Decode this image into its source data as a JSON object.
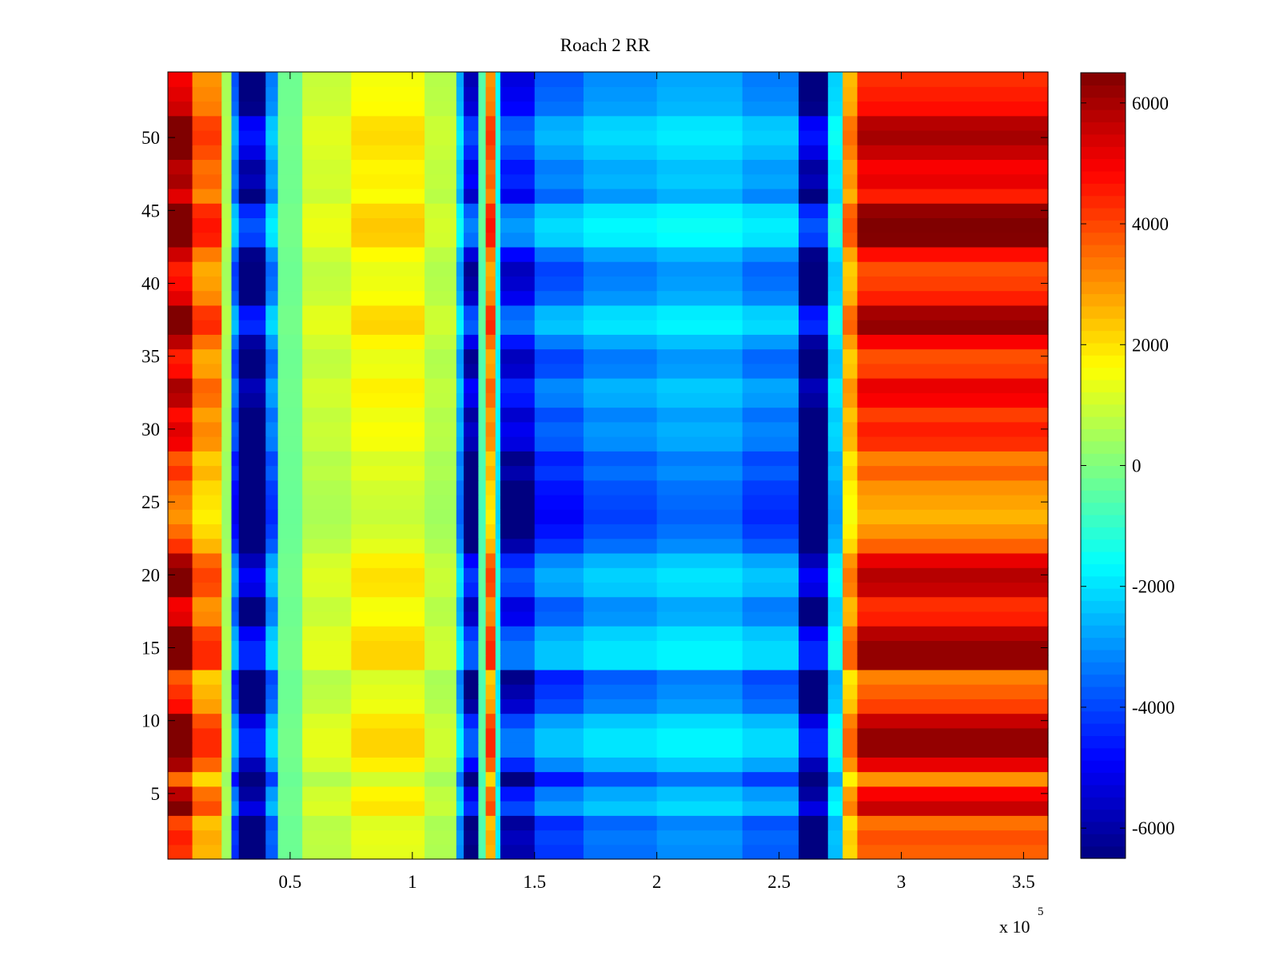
{
  "chart_data": {
    "type": "heatmap",
    "title": "Roach 2 RR",
    "xlabel": "",
    "ylabel": "",
    "x_multiplier_label": "x 10",
    "x_multiplier_exponent": "5",
    "xlim": [
      0,
      360000
    ],
    "ylim": [
      0.5,
      54.5
    ],
    "x_ticks": [
      50000,
      100000,
      150000,
      200000,
      250000,
      300000,
      350000
    ],
    "x_tick_labels": [
      "0.5",
      "1",
      "1.5",
      "2",
      "2.5",
      "3",
      "3.5"
    ],
    "y_ticks": [
      5,
      10,
      15,
      20,
      25,
      30,
      35,
      40,
      45,
      50
    ],
    "y_tick_labels": [
      "5",
      "10",
      "15",
      "20",
      "25",
      "30",
      "35",
      "40",
      "45",
      "50"
    ],
    "rows": 54,
    "colormap": "jet",
    "clim": [
      -6500,
      6500
    ],
    "colorbar": {
      "ticks": [
        -6000,
        -4000,
        -2000,
        0,
        2000,
        4000,
        6000
      ],
      "tick_labels": [
        "-6000",
        "-4000",
        "-2000",
        "0",
        "2000",
        "4000",
        "6000"
      ]
    },
    "column_bands": [
      {
        "x_start": 0,
        "x_end": 10000,
        "value": 5000
      },
      {
        "x_start": 10000,
        "x_end": 22000,
        "value": 3000
      },
      {
        "x_start": 22000,
        "x_end": 26000,
        "value": 500
      },
      {
        "x_start": 26000,
        "x_end": 29000,
        "value": -3500
      },
      {
        "x_start": 29000,
        "x_end": 40000,
        "value": -6300
      },
      {
        "x_start": 40000,
        "x_end": 45000,
        "value": -3000
      },
      {
        "x_start": 45000,
        "x_end": 55000,
        "value": -200
      },
      {
        "x_start": 55000,
        "x_end": 75000,
        "value": 900
      },
      {
        "x_start": 75000,
        "x_end": 105000,
        "value": 1500
      },
      {
        "x_start": 105000,
        "x_end": 118000,
        "value": 700
      },
      {
        "x_start": 118000,
        "x_end": 121000,
        "value": -2500
      },
      {
        "x_start": 121000,
        "x_end": 127000,
        "value": -5300
      },
      {
        "x_start": 127000,
        "x_end": 130000,
        "value": -500
      },
      {
        "x_start": 130000,
        "x_end": 134000,
        "value": 3000
      },
      {
        "x_start": 134000,
        "x_end": 136000,
        "value": -1500
      },
      {
        "x_start": 136000,
        "x_end": 150000,
        "value": -4800
      },
      {
        "x_start": 150000,
        "x_end": 170000,
        "value": -3400
      },
      {
        "x_start": 170000,
        "x_end": 200000,
        "value": -2800
      },
      {
        "x_start": 200000,
        "x_end": 235000,
        "value": -2500
      },
      {
        "x_start": 235000,
        "x_end": 258000,
        "value": -3000
      },
      {
        "x_start": 258000,
        "x_end": 270000,
        "value": -6300
      },
      {
        "x_start": 270000,
        "x_end": 276000,
        "value": -2000
      },
      {
        "x_start": 276000,
        "x_end": 282000,
        "value": 2500
      },
      {
        "x_start": 282000,
        "x_end": 360000,
        "value": 4300
      }
    ],
    "row_modulation": [
      0.85,
      0.9,
      0.8,
      1.3,
      1.15,
      0.7,
      1.2,
      1.45,
      1.45,
      1.3,
      0.95,
      0.85,
      0.75,
      1.45,
      1.45,
      1.35,
      1.05,
      1.0,
      1.3,
      1.35,
      1.2,
      0.85,
      0.7,
      0.6,
      0.65,
      0.7,
      0.85,
      0.75,
      1.0,
      1.05,
      0.95,
      1.15,
      1.2,
      0.95,
      0.9,
      1.15,
      1.45,
      1.4,
      1.05,
      0.95,
      0.9,
      1.1,
      1.5,
      1.55,
      1.45,
      1.05,
      1.2,
      1.15,
      1.3,
      1.4,
      1.35,
      1.1,
      1.05,
      1.0
    ]
  }
}
